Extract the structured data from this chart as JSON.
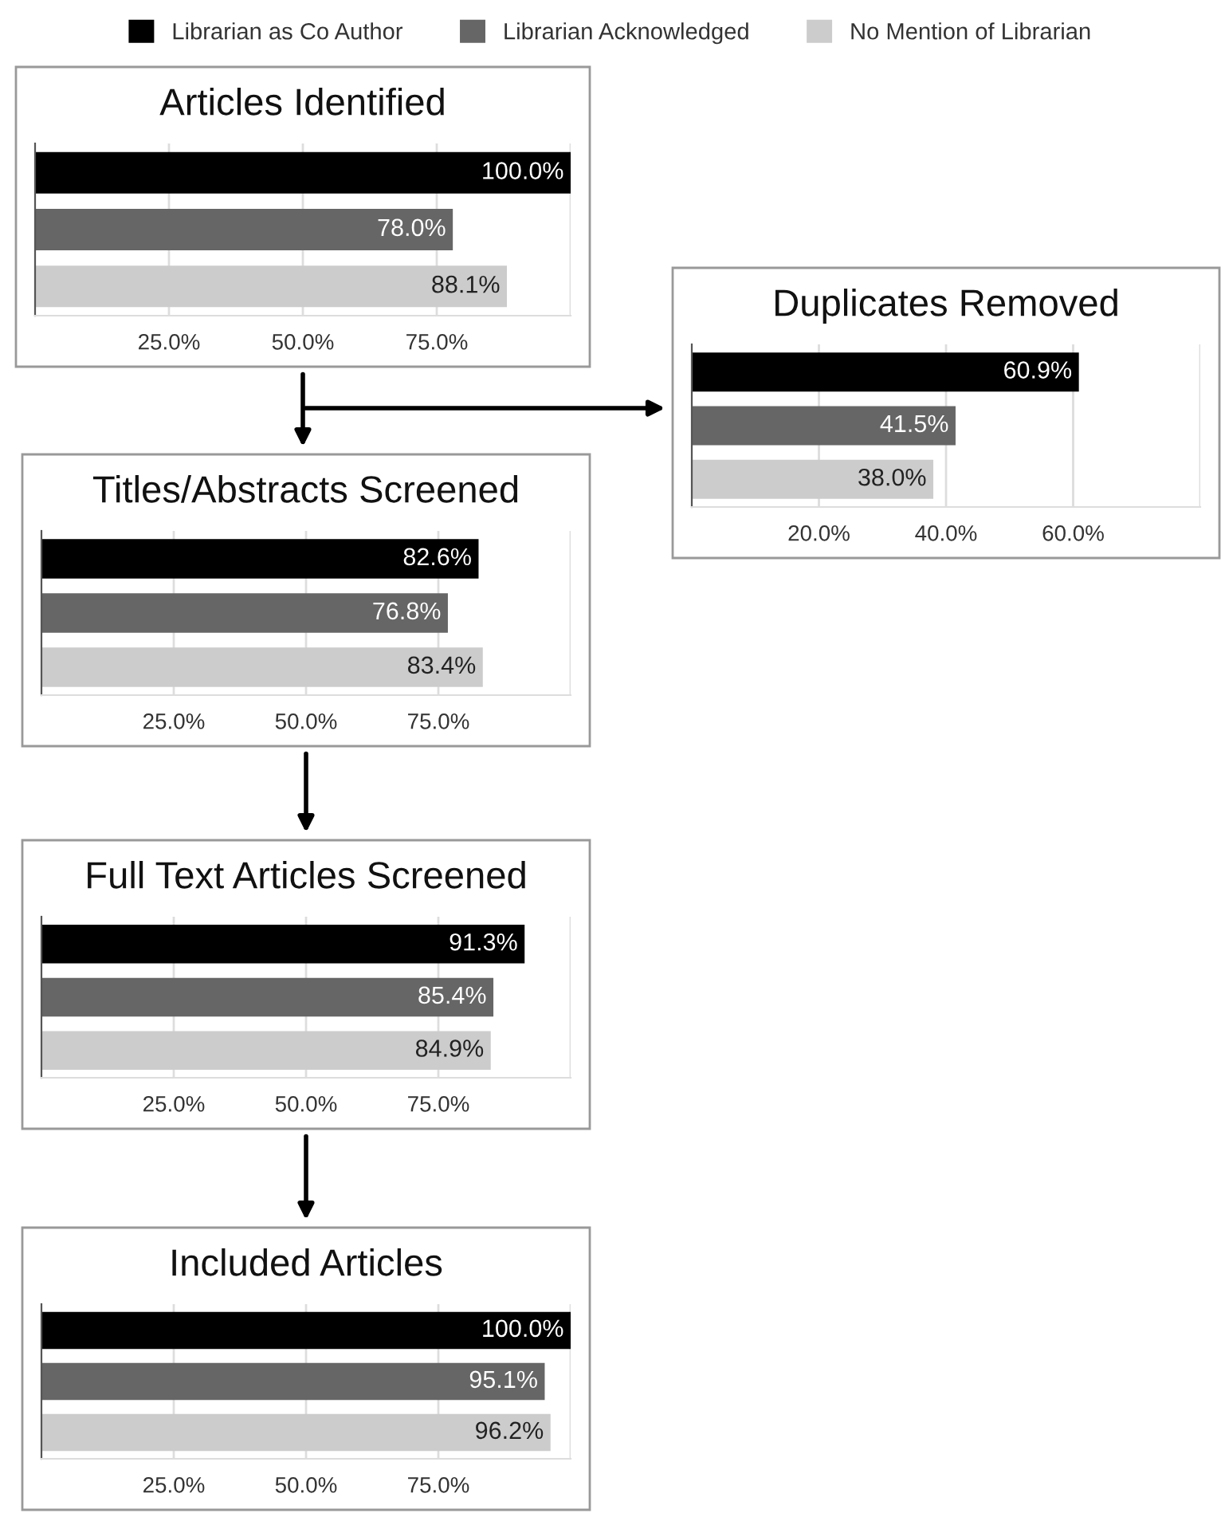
{
  "chart_data": [
    {
      "type": "bar",
      "orientation": "horizontal",
      "title": "Articles Identified",
      "categories": [
        null
      ],
      "legend": "top",
      "grid": "x",
      "xlim": [
        0,
        100
      ],
      "xticks": [
        {
          "value": 25,
          "label": "25.0%"
        },
        {
          "value": 50,
          "label": "50.0%"
        },
        {
          "value": 75,
          "label": "75.0%"
        },
        {
          "value": 100,
          "label": null
        }
      ],
      "series": [
        {
          "name": "Librarian as Co Author",
          "color": "#000000",
          "values": [
            100.0
          ],
          "value_labels": [
            "100.0%"
          ]
        },
        {
          "name": "Librarian Acknowledged",
          "color": "#666666",
          "values": [
            78.0
          ],
          "value_labels": [
            "78.0%"
          ]
        },
        {
          "name": "No Mention of Librarian",
          "color": "#cccccc",
          "values": [
            88.1
          ],
          "value_labels": [
            "88.1%"
          ]
        }
      ]
    },
    {
      "type": "bar",
      "orientation": "horizontal",
      "title": "Duplicates Removed",
      "categories": [
        null
      ],
      "grid": "x",
      "xlim": [
        0,
        80
      ],
      "xticks": [
        {
          "value": 20,
          "label": "20.0%"
        },
        {
          "value": 40,
          "label": "40.0%"
        },
        {
          "value": 60,
          "label": "60.0%"
        },
        {
          "value": 80,
          "label": null
        }
      ],
      "series": [
        {
          "color": "#000000",
          "values": [
            60.9
          ],
          "value_labels": [
            "60.9%"
          ]
        },
        {
          "color": "#666666",
          "values": [
            41.5
          ],
          "value_labels": [
            "41.5%"
          ]
        },
        {
          "color": "#cccccc",
          "values": [
            38.0
          ],
          "value_labels": [
            "38.0%"
          ]
        }
      ]
    },
    {
      "type": "bar",
      "orientation": "horizontal",
      "title": "Titles/Abstracts Screened",
      "categories": [
        null
      ],
      "grid": "x",
      "xlim": [
        0,
        100
      ],
      "xticks": [
        {
          "value": 25,
          "label": "25.0%"
        },
        {
          "value": 50,
          "label": "50.0%"
        },
        {
          "value": 75,
          "label": "75.0%"
        },
        {
          "value": 100,
          "label": null
        }
      ],
      "series": [
        {
          "color": "#000000",
          "values": [
            82.6
          ],
          "value_labels": [
            "82.6%"
          ]
        },
        {
          "color": "#666666",
          "values": [
            76.8
          ],
          "value_labels": [
            "76.8%"
          ]
        },
        {
          "color": "#cccccc",
          "values": [
            83.4
          ],
          "value_labels": [
            "83.4%"
          ]
        }
      ]
    },
    {
      "type": "bar",
      "orientation": "horizontal",
      "title": "Full Text Articles Screened",
      "categories": [
        null
      ],
      "grid": "x",
      "xlim": [
        0,
        100
      ],
      "xticks": [
        {
          "value": 25,
          "label": "25.0%"
        },
        {
          "value": 50,
          "label": "50.0%"
        },
        {
          "value": 75,
          "label": "75.0%"
        },
        {
          "value": 100,
          "label": null
        }
      ],
      "series": [
        {
          "color": "#000000",
          "values": [
            91.3
          ],
          "value_labels": [
            "91.3%"
          ]
        },
        {
          "color": "#666666",
          "values": [
            85.4
          ],
          "value_labels": [
            "85.4%"
          ]
        },
        {
          "color": "#cccccc",
          "values": [
            84.9
          ],
          "value_labels": [
            "84.9%"
          ]
        }
      ]
    },
    {
      "type": "bar",
      "orientation": "horizontal",
      "title": "Included Articles",
      "categories": [
        null
      ],
      "grid": "x",
      "xlim": [
        0,
        100
      ],
      "xticks": [
        {
          "value": 25,
          "label": "25.0%"
        },
        {
          "value": 50,
          "label": "50.0%"
        },
        {
          "value": 75,
          "label": "75.0%"
        },
        {
          "value": 100,
          "label": null
        }
      ],
      "series": [
        {
          "color": "#000000",
          "values": [
            100.0
          ],
          "value_labels": [
            "100.0%"
          ]
        },
        {
          "color": "#666666",
          "values": [
            95.1
          ],
          "value_labels": [
            "95.1%"
          ]
        },
        {
          "color": "#cccccc",
          "values": [
            96.2
          ],
          "value_labels": [
            "96.2%"
          ]
        }
      ]
    }
  ]
}
